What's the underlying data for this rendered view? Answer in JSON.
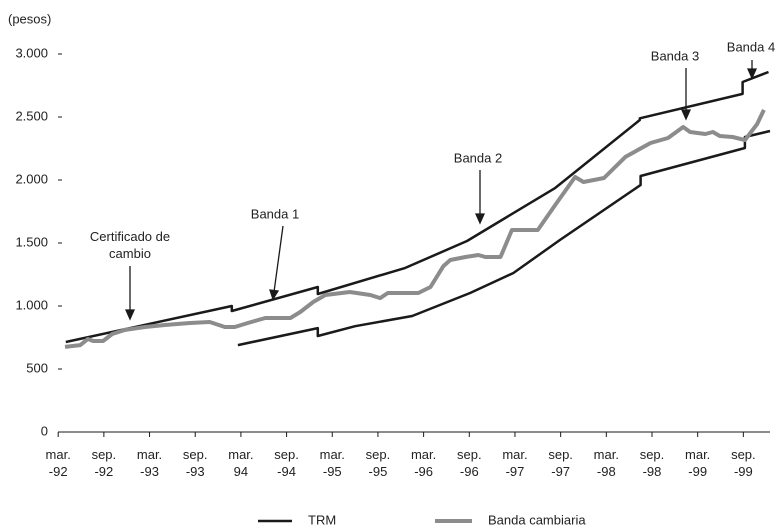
{
  "chart_data": {
    "type": "line",
    "ylabel": "(pesos)",
    "xticks": [
      {
        "value": 0,
        "label": "mar.\n-92"
      },
      {
        "value": 6,
        "label": "sep.\n-92"
      },
      {
        "value": 12,
        "label": "mar.\n-93"
      },
      {
        "value": 18,
        "label": "sep.\n-93"
      },
      {
        "value": 24,
        "label": "mar.\n94"
      },
      {
        "value": 30,
        "label": "sep.\n-94"
      },
      {
        "value": 36,
        "label": "mar.\n-95"
      },
      {
        "value": 42,
        "label": "sep.\n-95"
      },
      {
        "value": 48,
        "label": "mar.\n-96"
      },
      {
        "value": 54,
        "label": "sep.\n-96"
      },
      {
        "value": 60,
        "label": "mar.\n-97"
      },
      {
        "value": 66,
        "label": "sep.\n-97"
      },
      {
        "value": 72,
        "label": "mar.\n-98"
      },
      {
        "value": 78,
        "label": "sep.\n-98"
      },
      {
        "value": 84,
        "label": "mar.\n-99"
      },
      {
        "value": 90,
        "label": "sep.\n-99"
      }
    ],
    "xlim": [
      0.5,
      93.5
    ],
    "ylim": [
      0,
      3000
    ],
    "yticks": [
      0,
      500,
      {
        "value": 1000,
        "label": "1.000"
      },
      {
        "value": 1500,
        "label": "1.500"
      },
      {
        "value": 2000,
        "label": "2.000"
      },
      {
        "value": 2500,
        "label": "2.500"
      },
      {
        "value": 3000,
        "label": "3.000"
      }
    ],
    "annotations": [
      "Certificado de\ncambio",
      "Banda 1",
      "Banda 2",
      "Banda 3",
      "Banda 4"
    ],
    "series": [
      {
        "name": "TRM",
        "color": "#1a1a1a",
        "x": [
          1.0,
          22.8,
          22.8,
          34.1,
          34.1,
          45.6,
          53.7,
          65.3,
          76.4,
          76.4,
          89.9,
          89.9,
          93.3,
          null,
          23.6,
          34.1,
          34.1,
          39,
          46.5,
          54.1,
          59.8,
          65.9,
          76.5,
          76.5,
          90.2,
          90.2,
          93.5
        ],
        "values": [
          714,
          1000,
          960,
          1151,
          1095,
          1302,
          1516,
          1937,
          2476,
          2490,
          2683,
          2778,
          2857,
          null,
          690,
          825,
          762,
          840,
          921,
          1103,
          1262,
          1524,
          1960,
          2032,
          2254,
          2341,
          2389
        ]
      },
      {
        "name": "Banda cambiaria",
        "color": "#8c8c8c",
        "x": [
          0.9,
          2.9,
          3.9,
          4.6,
          5.9,
          7.1,
          8.8,
          11.4,
          14.0,
          17.3,
          19.9,
          21.9,
          23.2,
          24.9,
          27.2,
          30.5,
          31.8,
          33.5,
          35.1,
          38.3,
          41.0,
          42.3,
          43.3,
          47.3,
          48.9,
          50.6,
          51.5,
          53.5,
          55.2,
          56.1,
          58.1,
          59.6,
          63.0,
          65.3,
          67.9,
          69.0,
          71.7,
          74.5,
          77.8,
          80.1,
          82.1,
          83.0,
          85.0,
          86.0,
          86.9,
          88.6,
          90.2,
          91.8,
          92.7
        ],
        "values": [
          675,
          690,
          738,
          722,
          722,
          778,
          810,
          833,
          849,
          865,
          873,
          833,
          833,
          865,
          905,
          905,
          952,
          1032,
          1087,
          1111,
          1087,
          1063,
          1103,
          1103,
          1151,
          1317,
          1365,
          1389,
          1405,
          1389,
          1389,
          1603,
          1603,
          1802,
          2024,
          1984,
          2016,
          2183,
          2294,
          2333,
          2421,
          2381,
          2365,
          2381,
          2349,
          2341,
          2317,
          2444,
          2556
        ]
      }
    ]
  }
}
